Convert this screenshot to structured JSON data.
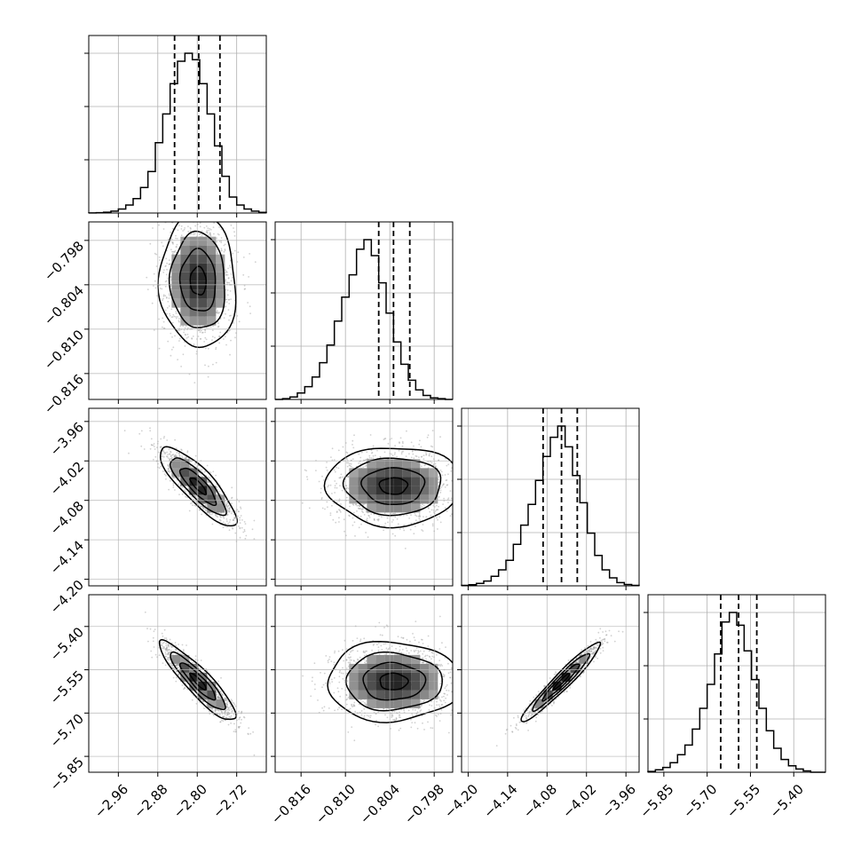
{
  "chart_data": {
    "type": "corner",
    "grid": true,
    "histogram_color": "#000000",
    "density_colormap": [
      "#ffffff",
      "#000000"
    ],
    "scatter_color": "#9a9a9a",
    "parameters": [
      {
        "range": [
          -3.02,
          -2.66
        ],
        "ticks": [
          "−2.96",
          "−2.88",
          "−2.80",
          "−2.72"
        ],
        "tick_values": [
          -2.96,
          -2.88,
          -2.8,
          -2.72
        ],
        "quantiles": [
          -2.846,
          -2.797,
          -2.754
        ],
        "hist": [
          0.1,
          0.2,
          0.5,
          1.2,
          2.5,
          5,
          9,
          16,
          26,
          44,
          62,
          81,
          95,
          100,
          96,
          81,
          62,
          42,
          23,
          10,
          5,
          2.5,
          1.2,
          0.4
        ]
      },
      {
        "range": [
          -0.8195,
          -0.7955
        ],
        "ticks": [
          "−0.816",
          "−0.810",
          "−0.804",
          "−0.798"
        ],
        "tick_values": [
          -0.816,
          -0.81,
          -0.804,
          -0.798
        ],
        "quantiles": [
          -0.8055,
          -0.8035,
          -0.8013
        ],
        "hist": [
          0,
          0.5,
          1.5,
          4,
          8,
          14,
          23,
          34,
          49,
          64,
          78,
          94,
          100,
          90,
          73,
          54,
          36,
          22,
          12,
          6,
          2.5,
          1,
          0.5,
          0
        ]
      },
      {
        "range": [
          -4.21,
          -3.94
        ],
        "ticks": [
          "−4.20",
          "−4.14",
          "−4.08",
          "−4.02",
          "−3.96"
        ],
        "tick_values": [
          -4.2,
          -4.14,
          -4.08,
          -4.02,
          -3.96
        ],
        "quantiles": [
          -4.086,
          -4.058,
          -4.034
        ],
        "hist": [
          0.3,
          0.7,
          1.5,
          3,
          6,
          10,
          16,
          26,
          38,
          51,
          66,
          81,
          93,
          100,
          87,
          69,
          52,
          33,
          19,
          10,
          5,
          2,
          0.8,
          0.3
        ]
      },
      {
        "range": [
          -5.905,
          -5.29
        ],
        "ticks": [
          "−5.85",
          "−5.70",
          "−5.55",
          "−5.40"
        ],
        "tick_values": [
          -5.85,
          -5.7,
          -5.55,
          -5.4
        ],
        "quantiles": [
          -5.653,
          -5.591,
          -5.528
        ],
        "hist": [
          0.5,
          1.5,
          3,
          6,
          11,
          17,
          27,
          40,
          55,
          74,
          94,
          100,
          92,
          76,
          58,
          40,
          26,
          15,
          8,
          4,
          2,
          0.8,
          0,
          0
        ]
      }
    ],
    "pairs": [
      {
        "row": 1,
        "col": 0,
        "mean": [
          -2.798,
          -0.8035
        ],
        "sd": [
          0.036,
          0.0042
        ],
        "corr": -0.05
      },
      {
        "row": 2,
        "col": 0,
        "mean": [
          -2.798,
          -4.058
        ],
        "sd": [
          0.036,
          0.028
        ],
        "corr": -0.84
      },
      {
        "row": 2,
        "col": 1,
        "mean": [
          -0.8035,
          -4.058
        ],
        "sd": [
          0.0042,
          0.028
        ],
        "corr": 0.0
      },
      {
        "row": 3,
        "col": 0,
        "mean": [
          -2.798,
          -5.591
        ],
        "sd": [
          0.036,
          0.064
        ],
        "corr": -0.9
      },
      {
        "row": 3,
        "col": 1,
        "mean": [
          -0.8035,
          -5.591
        ],
        "sd": [
          0.0042,
          0.064
        ],
        "corr": 0.0
      },
      {
        "row": 3,
        "col": 2,
        "mean": [
          -4.058,
          -5.591
        ],
        "sd": [
          0.028,
          0.064
        ],
        "corr": 0.96
      }
    ]
  }
}
